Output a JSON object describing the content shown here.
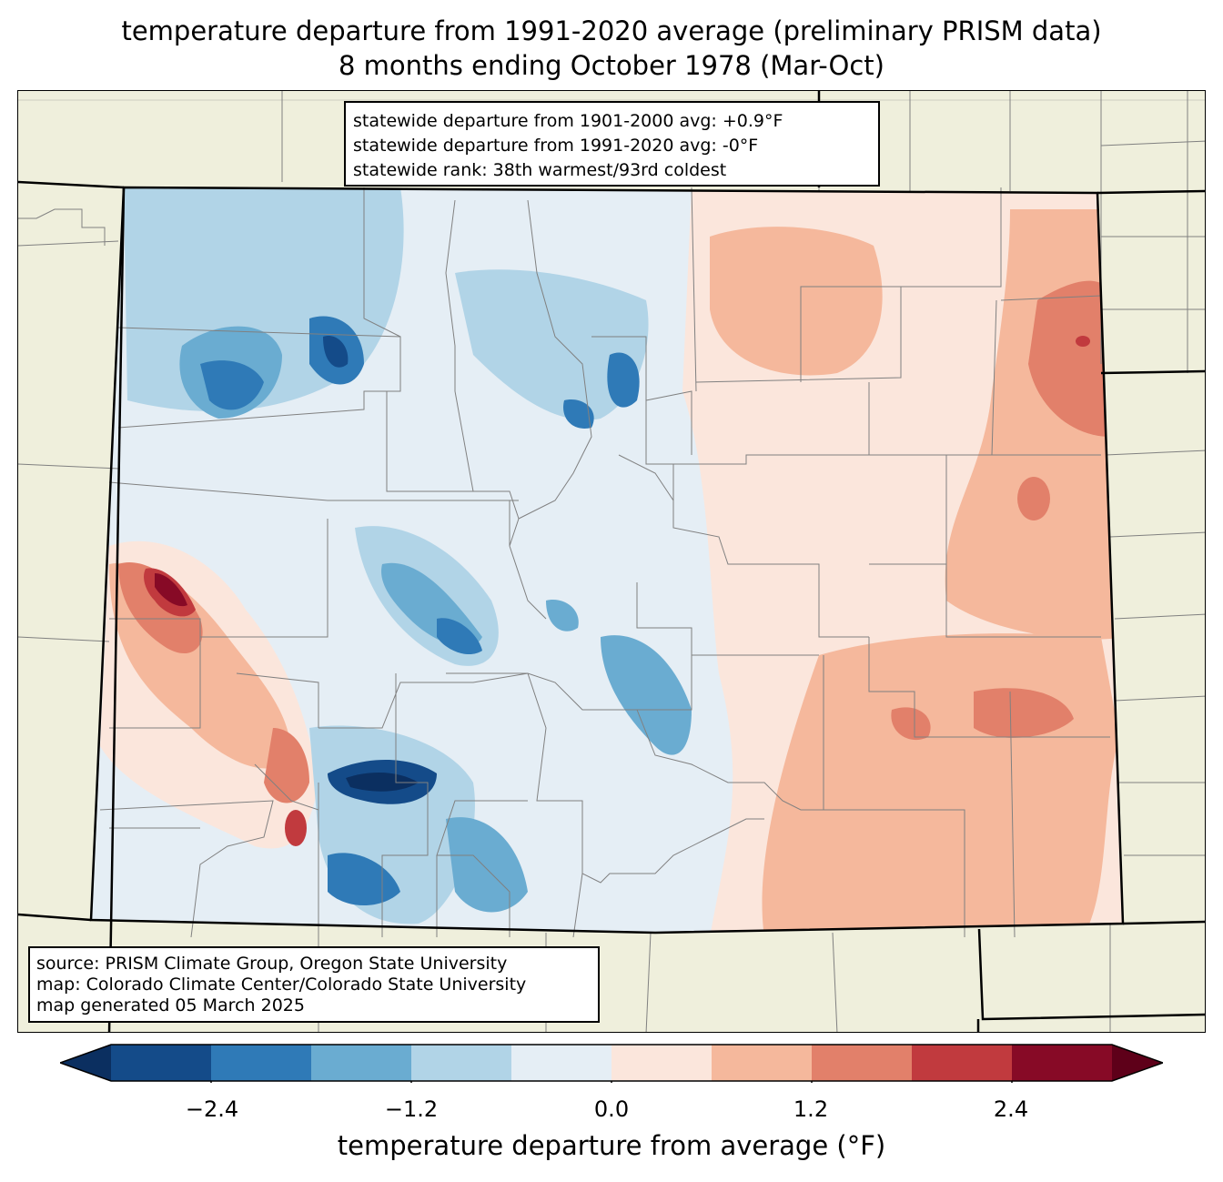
{
  "title": {
    "line1": "temperature departure from 1991-2020 average (preliminary PRISM data)",
    "line2": "8 months ending October 1978 (Mar-Oct)"
  },
  "stats": {
    "line1": "statewide departure from 1901-2000 avg: +0.9°F",
    "line2": "statewide departure from 1991-2020 avg: -0°F",
    "line3": "statewide rank: 38th warmest/93rd coldest"
  },
  "source": {
    "line1": "source: PRISM Climate Group, Oregon State University",
    "line2": "map: Colorado Climate Center/Colorado State University",
    "line3": "map generated 05 March 2025"
  },
  "colorbar": {
    "label": "temperature departure from average (°F)",
    "ticks": [
      "−2.4",
      "−1.2",
      "0.0",
      "1.2",
      "2.4"
    ],
    "tick_values": [
      -2.4,
      -1.2,
      0.0,
      1.2,
      2.4
    ],
    "range": [
      -3.0,
      3.0
    ],
    "colors": [
      "#0b2f60",
      "#144b89",
      "#2f7ab7",
      "#6aacd1",
      "#b1d4e7",
      "#e5eef5",
      "#fbe6dc",
      "#f5b89c",
      "#e2806a",
      "#c13a3e",
      "#870a26",
      "#5e0019"
    ]
  },
  "map_colors": {
    "land_outside": "#efefdc",
    "county_lines": "#808080",
    "state_lines": "#000000"
  }
}
